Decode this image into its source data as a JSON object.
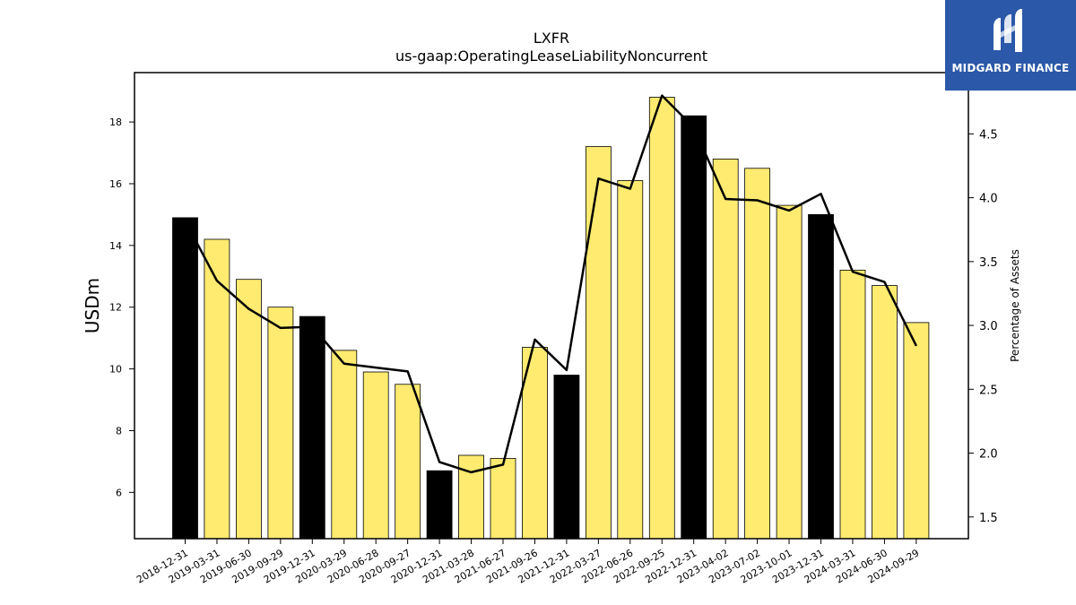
{
  "chart_data": {
    "type": "bar",
    "title": "LXFR",
    "subtitle": "us-gaap:OperatingLeaseLiabilityNoncurrent",
    "ylabel": "USDm",
    "y2label": "Percentage of Assets",
    "ylim": [
      4.5,
      19.6
    ],
    "y2lim": [
      1.33,
      4.98
    ],
    "yticks": [
      6,
      8,
      10,
      12,
      14,
      16,
      18
    ],
    "y2ticks": [
      1.5,
      2.0,
      2.5,
      3.0,
      3.5,
      4.0,
      4.5
    ],
    "categories": [
      "2018-12-31",
      "2019-03-31",
      "2019-06-30",
      "2019-09-29",
      "2019-12-31",
      "2020-03-29",
      "2020-06-28",
      "2020-09-27",
      "2020-12-31",
      "2021-03-28",
      "2021-06-27",
      "2021-09-26",
      "2021-12-31",
      "2022-03-27",
      "2022-06-26",
      "2022-09-25",
      "2022-12-31",
      "2023-04-02",
      "2023-07-02",
      "2023-10-01",
      "2023-12-31",
      "2024-03-31",
      "2024-06-30",
      "2024-09-29"
    ],
    "series": [
      {
        "values": [
          14.9,
          14.2,
          12.9,
          12.0,
          11.7,
          10.6,
          9.9,
          9.5,
          6.7,
          7.2,
          7.1,
          10.7,
          9.8,
          17.2,
          16.1,
          18.8,
          18.2,
          16.8,
          16.5,
          15.3,
          15.0,
          13.2,
          12.7,
          11.5
        ],
        "axis": "left",
        "kind": "bar"
      },
      {
        "values": [
          3.82,
          3.35,
          3.13,
          2.98,
          2.99,
          2.7,
          2.67,
          2.64,
          1.93,
          1.85,
          1.91,
          2.89,
          2.65,
          4.15,
          4.07,
          4.8,
          4.55,
          3.99,
          3.98,
          3.9,
          4.03,
          3.42,
          3.34,
          2.84
        ],
        "axis": "right",
        "kind": "line"
      }
    ],
    "fiscal_year_end": [
      true,
      false,
      false,
      false,
      true,
      false,
      false,
      false,
      true,
      false,
      false,
      false,
      true,
      false,
      false,
      false,
      true,
      false,
      false,
      false,
      true,
      false,
      false,
      false
    ],
    "colors": {
      "bar_quarter": "#ffeb70",
      "bar_year_end": "#000000",
      "bar_edge": "#000000",
      "line": "#000000"
    },
    "grid": false
  },
  "logo": {
    "text": "MIDGARD FINANCE",
    "background": "#2b58a8"
  }
}
